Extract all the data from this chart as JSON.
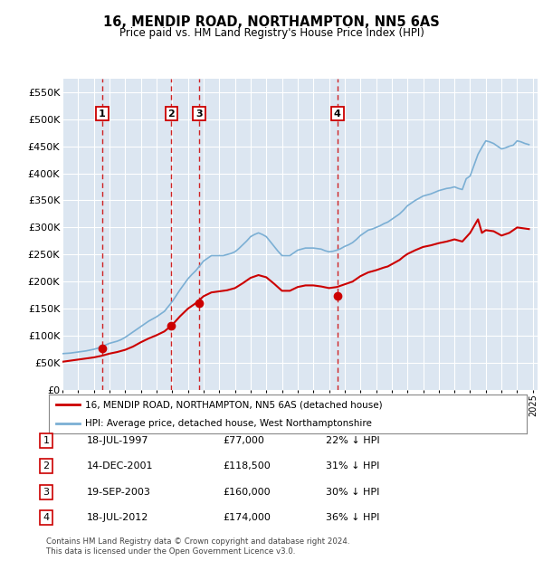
{
  "title": "16, MENDIP ROAD, NORTHAMPTON, NN5 6AS",
  "subtitle": "Price paid vs. HM Land Registry's House Price Index (HPI)",
  "legend_line1": "16, MENDIP ROAD, NORTHAMPTON, NN5 6AS (detached house)",
  "legend_line2": "HPI: Average price, detached house, West Northamptonshire",
  "footer": "Contains HM Land Registry data © Crown copyright and database right 2024.\nThis data is licensed under the Open Government Licence v3.0.",
  "sale_color": "#cc0000",
  "hpi_color": "#7bafd4",
  "background_color": "#dce6f1",
  "ylim": [
    0,
    575000
  ],
  "yticks": [
    0,
    50000,
    100000,
    150000,
    200000,
    250000,
    300000,
    350000,
    400000,
    450000,
    500000,
    550000
  ],
  "sales": [
    {
      "label": "1",
      "date_x": 1997.54,
      "price": 77000,
      "note": "18-JUL-1997",
      "amount": "£77,000",
      "pct": "22% ↓ HPI"
    },
    {
      "label": "2",
      "date_x": 2001.95,
      "price": 118500,
      "note": "14-DEC-2001",
      "amount": "£118,500",
      "pct": "31% ↓ HPI"
    },
    {
      "label": "3",
      "date_x": 2003.72,
      "price": 160000,
      "note": "19-SEP-2003",
      "amount": "£160,000",
      "pct": "30% ↓ HPI"
    },
    {
      "label": "4",
      "date_x": 2012.54,
      "price": 174000,
      "note": "18-JUL-2012",
      "amount": "£174,000",
      "pct": "36% ↓ HPI"
    }
  ],
  "hpi_data_x": [
    1995,
    1995.25,
    1995.5,
    1995.75,
    1996,
    1996.25,
    1996.5,
    1996.75,
    1997,
    1997.25,
    1997.5,
    1997.75,
    1998,
    1998.25,
    1998.5,
    1998.75,
    1999,
    1999.25,
    1999.5,
    1999.75,
    2000,
    2000.25,
    2000.5,
    2000.75,
    2001,
    2001.25,
    2001.5,
    2001.75,
    2002,
    2002.25,
    2002.5,
    2002.75,
    2003,
    2003.25,
    2003.5,
    2003.75,
    2004,
    2004.25,
    2004.5,
    2004.75,
    2005,
    2005.25,
    2005.5,
    2005.75,
    2006,
    2006.25,
    2006.5,
    2006.75,
    2007,
    2007.25,
    2007.5,
    2007.75,
    2008,
    2008.25,
    2008.5,
    2008.75,
    2009,
    2009.25,
    2009.5,
    2009.75,
    2010,
    2010.25,
    2010.5,
    2010.75,
    2011,
    2011.25,
    2011.5,
    2011.75,
    2012,
    2012.25,
    2012.5,
    2012.75,
    2013,
    2013.25,
    2013.5,
    2013.75,
    2014,
    2014.25,
    2014.5,
    2014.75,
    2015,
    2015.25,
    2015.5,
    2015.75,
    2016,
    2016.25,
    2016.5,
    2016.75,
    2017,
    2017.25,
    2017.5,
    2017.75,
    2018,
    2018.25,
    2018.5,
    2018.75,
    2019,
    2019.25,
    2019.5,
    2019.75,
    2020,
    2020.25,
    2020.5,
    2020.75,
    2021,
    2021.25,
    2021.5,
    2021.75,
    2022,
    2022.25,
    2022.5,
    2022.75,
    2023,
    2023.25,
    2023.5,
    2023.75,
    2024,
    2024.25,
    2024.5,
    2024.75
  ],
  "hpi_data_y": [
    67000,
    67500,
    68000,
    69000,
    70000,
    71000,
    72000,
    73500,
    75000,
    77000,
    80000,
    83000,
    86000,
    88000,
    90000,
    93000,
    97000,
    102000,
    107000,
    112000,
    117000,
    122000,
    127000,
    131000,
    135000,
    140000,
    145000,
    154000,
    163000,
    174000,
    185000,
    195000,
    205000,
    213000,
    220000,
    229000,
    238000,
    243000,
    248000,
    248000,
    248000,
    248000,
    250000,
    252000,
    255000,
    261000,
    268000,
    275000,
    283000,
    287000,
    290000,
    287000,
    283000,
    274000,
    265000,
    256000,
    248000,
    248000,
    248000,
    253000,
    258000,
    260000,
    262000,
    262000,
    262000,
    261000,
    260000,
    257000,
    255000,
    256000,
    258000,
    261000,
    265000,
    268000,
    272000,
    278000,
    285000,
    290000,
    295000,
    297000,
    300000,
    303000,
    307000,
    310000,
    315000,
    320000,
    325000,
    332000,
    340000,
    345000,
    350000,
    354000,
    358000,
    360000,
    362000,
    365000,
    368000,
    370000,
    372000,
    373000,
    375000,
    372000,
    370000,
    390000,
    395000,
    415000,
    435000,
    448000,
    460000,
    458000,
    455000,
    450000,
    445000,
    447000,
    450000,
    452000,
    460000,
    458000,
    455000,
    453000
  ],
  "sale_hpi_data_x": [
    1995,
    1995.25,
    1995.5,
    1995.75,
    1996,
    1996.25,
    1996.5,
    1996.75,
    1997,
    1997.25,
    1997.5,
    1997.75,
    1998,
    1998.25,
    1998.5,
    1998.75,
    1999,
    1999.25,
    1999.5,
    1999.75,
    2000,
    2000.25,
    2000.5,
    2000.75,
    2001,
    2001.25,
    2001.5,
    2001.75,
    2002,
    2002.25,
    2002.5,
    2002.75,
    2003,
    2003.25,
    2003.5,
    2003.75,
    2004,
    2004.25,
    2004.5,
    2004.75,
    2005,
    2005.25,
    2005.5,
    2005.75,
    2006,
    2006.25,
    2006.5,
    2006.75,
    2007,
    2007.25,
    2007.5,
    2007.75,
    2008,
    2008.25,
    2008.5,
    2008.75,
    2009,
    2009.25,
    2009.5,
    2009.75,
    2010,
    2010.25,
    2010.5,
    2010.75,
    2011,
    2011.25,
    2011.5,
    2011.75,
    2012,
    2012.25,
    2012.5,
    2012.75,
    2013,
    2013.25,
    2013.5,
    2013.75,
    2014,
    2014.25,
    2014.5,
    2014.75,
    2015,
    2015.25,
    2015.5,
    2015.75,
    2016,
    2016.25,
    2016.5,
    2016.75,
    2017,
    2017.25,
    2017.5,
    2017.75,
    2018,
    2018.25,
    2018.5,
    2018.75,
    2019,
    2019.25,
    2019.5,
    2019.75,
    2020,
    2020.25,
    2020.5,
    2020.75,
    2021,
    2021.25,
    2021.5,
    2021.75,
    2022,
    2022.25,
    2022.5,
    2022.75,
    2023,
    2023.25,
    2023.5,
    2023.75,
    2024,
    2024.25,
    2024.5,
    2024.75
  ],
  "sale_hpi_data_y": [
    52000,
    53000,
    54000,
    55000,
    56000,
    57000,
    58000,
    59000,
    60000,
    61500,
    63000,
    65000,
    67000,
    68500,
    70000,
    72000,
    74000,
    77000,
    80000,
    84000,
    88000,
    91500,
    95000,
    98000,
    101000,
    104500,
    108000,
    114000,
    120000,
    128000,
    136000,
    143000,
    150000,
    155000,
    160000,
    166500,
    173000,
    176500,
    180000,
    181000,
    182000,
    183000,
    184000,
    186000,
    188000,
    192500,
    197000,
    202000,
    207000,
    209500,
    212000,
    210000,
    208000,
    202000,
    196000,
    189500,
    183000,
    183000,
    183000,
    186500,
    190000,
    191500,
    193000,
    193000,
    193000,
    192000,
    191000,
    189500,
    188000,
    189000,
    190000,
    192500,
    195000,
    197500,
    200000,
    205000,
    210000,
    213500,
    217000,
    219000,
    221000,
    223500,
    226000,
    228000,
    232000,
    236000,
    240000,
    246000,
    251000,
    254500,
    258000,
    261000,
    264000,
    265500,
    267000,
    269000,
    271000,
    272500,
    274000,
    276000,
    278000,
    276000,
    274000,
    282000,
    290000,
    302500,
    315000,
    290000,
    295000,
    294000,
    293000,
    289000,
    285000,
    287500,
    290000,
    295000,
    300000,
    299000,
    298000,
    297000
  ],
  "xtick_years": [
    1995,
    1996,
    1997,
    1998,
    1999,
    2000,
    2001,
    2002,
    2003,
    2004,
    2005,
    2006,
    2007,
    2008,
    2009,
    2010,
    2011,
    2012,
    2013,
    2014,
    2015,
    2016,
    2017,
    2018,
    2019,
    2020,
    2021,
    2022,
    2023,
    2024,
    2025
  ]
}
